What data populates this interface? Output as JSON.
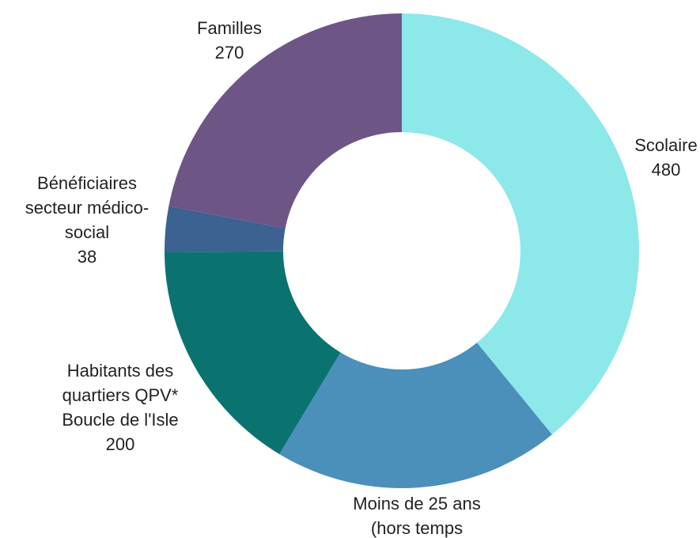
{
  "chart_data": {
    "type": "donut",
    "categories": [
      [
        "Scolaire"
      ],
      [
        "Moins de 25 ans",
        "(hors temps"
      ],
      [
        "Habitants des",
        "quartiers QPV*",
        "Boucle de l'Isle"
      ],
      [
        "Bénéficiaires",
        "secteur médico-",
        "social"
      ],
      [
        "Familles"
      ]
    ],
    "values": [
      480,
      240,
      200,
      38,
      270
    ],
    "colors": [
      "#8ce8e9",
      "#4a90bb",
      "#0a736f",
      "#3b6291",
      "#6d5586"
    ]
  }
}
